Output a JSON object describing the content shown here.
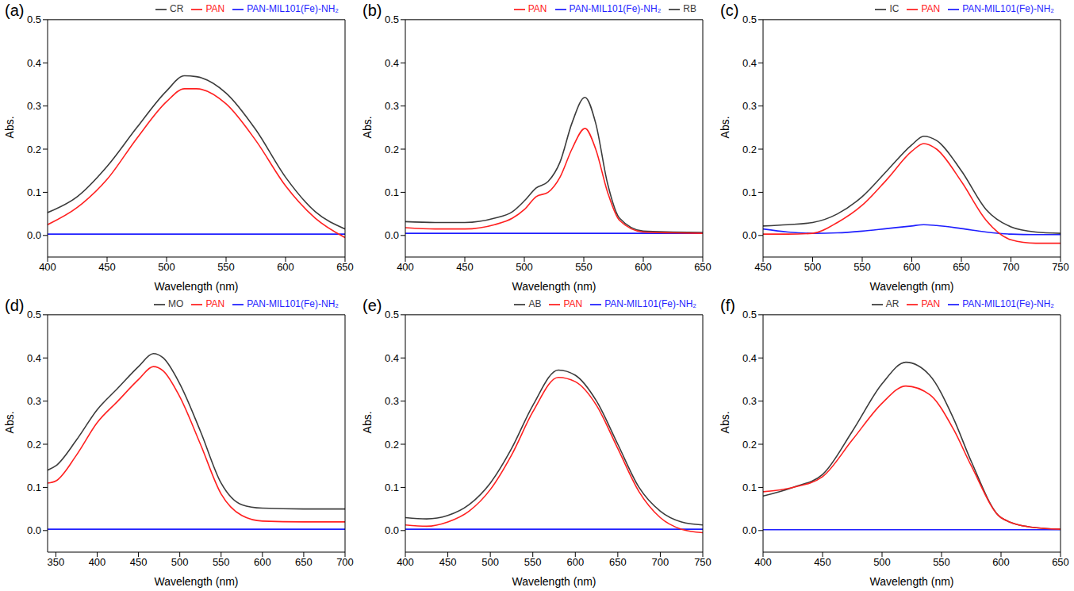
{
  "chart_data": [
    {
      "type": "line",
      "title": "(a)",
      "x_label": "Wavelength (nm)",
      "y_label": "Abs.",
      "legend": "top",
      "x": [
        400,
        425,
        450,
        475,
        500,
        515,
        525,
        550,
        575,
        600,
        625,
        650
      ],
      "series": [
        {
          "name": "CR",
          "color": "#3c3c3c",
          "values": [
            0.053,
            0.09,
            0.16,
            0.25,
            0.335,
            0.37,
            0.368,
            0.33,
            0.245,
            0.135,
            0.055,
            0.015
          ]
        },
        {
          "name": "PAN-MIL101(Fe)-NH₂",
          "color": "#1f1fff",
          "values": [
            0.003,
            0.003,
            0.003,
            0.003,
            0.003,
            0.003,
            0.003,
            0.003,
            0.003,
            0.003,
            0.003,
            0.003
          ]
        },
        {
          "name": "PAN",
          "color": "#ff2020",
          "values": [
            0.025,
            0.065,
            0.13,
            0.225,
            0.31,
            0.34,
            0.34,
            0.305,
            0.22,
            0.115,
            0.04,
            -0.005
          ]
        }
      ],
      "xlim": [
        400,
        650
      ],
      "xticks": [
        400,
        450,
        500,
        550,
        600,
        650
      ],
      "ylim": [
        -0.05,
        0.5
      ],
      "yticks": [
        {
          "value": 0,
          "label": "0.0"
        },
        0.1,
        0.2,
        0.3,
        0.4,
        0.5
      ]
    },
    {
      "type": "line",
      "title": "(b)",
      "x_label": "Wavelength (nm)",
      "y_label": "Abs.",
      "legend": "top",
      "x": [
        400,
        425,
        450,
        475,
        490,
        500,
        510,
        520,
        530,
        540,
        551,
        560,
        570,
        580,
        600,
        625,
        650
      ],
      "series": [
        {
          "name": "RB",
          "color": "#3c3c3c",
          "values": [
            0.032,
            0.03,
            0.03,
            0.04,
            0.055,
            0.08,
            0.11,
            0.125,
            0.17,
            0.26,
            0.32,
            0.26,
            0.12,
            0.04,
            0.01,
            0.008,
            0.007
          ]
        },
        {
          "name": "PAN-MIL101(Fe)-NH₂",
          "color": "#1f1fff",
          "values": [
            0.005,
            0.005,
            0.005,
            0.005,
            0.005,
            0.005,
            0.005,
            0.005,
            0.005,
            0.005,
            0.005,
            0.005,
            0.005,
            0.005,
            0.005,
            0.005,
            0.005
          ]
        },
        {
          "name": "PAN",
          "color": "#ff2020",
          "values": [
            0.018,
            0.015,
            0.015,
            0.025,
            0.04,
            0.06,
            0.09,
            0.1,
            0.135,
            0.2,
            0.248,
            0.2,
            0.1,
            0.035,
            0.008,
            0.006,
            0.005
          ]
        }
      ],
      "xlim": [
        400,
        650
      ],
      "xticks": [
        400,
        450,
        500,
        550,
        600,
        650
      ],
      "ylim": [
        -0.05,
        0.5
      ],
      "yticks": [
        {
          "value": 0,
          "label": "0.0"
        },
        0.1,
        0.2,
        0.3,
        0.4,
        0.5
      ]
    },
    {
      "type": "line",
      "title": "(c)",
      "x_label": "Wavelength (nm)",
      "y_label": "Abs.",
      "legend": "top",
      "x": [
        450,
        475,
        500,
        525,
        550,
        575,
        600,
        612,
        625,
        650,
        675,
        700,
        725,
        750
      ],
      "series": [
        {
          "name": "IC",
          "color": "#3c3c3c",
          "values": [
            0.022,
            0.025,
            0.03,
            0.05,
            0.09,
            0.15,
            0.21,
            0.23,
            0.22,
            0.15,
            0.06,
            0.02,
            0.008,
            0.005
          ]
        },
        {
          "name": "PAN-MIL101(Fe)-NH₂",
          "color": "#1f1fff",
          "values": [
            0.015,
            0.008,
            0.005,
            0.006,
            0.01,
            0.016,
            0.022,
            0.025,
            0.023,
            0.016,
            0.008,
            0.003,
            0.002,
            0.002
          ]
        },
        {
          "name": "PAN",
          "color": "#ff2020",
          "values": [
            0.003,
            0.003,
            0.005,
            0.03,
            0.07,
            0.13,
            0.195,
            0.213,
            0.2,
            0.125,
            0.035,
            -0.01,
            -0.018,
            -0.018
          ]
        }
      ],
      "xlim": [
        450,
        750
      ],
      "xticks": [
        450,
        500,
        550,
        600,
        650,
        700,
        750
      ],
      "ylim": [
        -0.05,
        0.5
      ],
      "yticks": [
        {
          "value": 0,
          "label": "0.0"
        },
        0.1,
        0.2,
        0.3,
        0.4,
        0.5
      ]
    },
    {
      "type": "line",
      "title": "(d)",
      "x_label": "Wavelength (nm)",
      "y_label": "Abs.",
      "legend": "top",
      "x": [
        340,
        350,
        375,
        400,
        425,
        450,
        468,
        480,
        500,
        525,
        550,
        575,
        600,
        650,
        700
      ],
      "series": [
        {
          "name": "MO",
          "color": "#3c3c3c",
          "values": [
            0.14,
            0.15,
            0.21,
            0.28,
            0.33,
            0.38,
            0.41,
            0.4,
            0.34,
            0.23,
            0.11,
            0.06,
            0.052,
            0.05,
            0.05
          ]
        },
        {
          "name": "PAN-MIL101(Fe)-NH₂",
          "color": "#1f1fff",
          "values": [
            0.003,
            0.003,
            0.003,
            0.003,
            0.003,
            0.003,
            0.003,
            0.003,
            0.003,
            0.003,
            0.003,
            0.003,
            0.003,
            0.003,
            0.003
          ]
        },
        {
          "name": "PAN",
          "color": "#ff2020",
          "values": [
            0.11,
            0.115,
            0.175,
            0.25,
            0.3,
            0.35,
            0.38,
            0.37,
            0.31,
            0.2,
            0.085,
            0.035,
            0.022,
            0.02,
            0.02
          ]
        }
      ],
      "xlim": [
        340,
        700
      ],
      "xticks": [
        350,
        400,
        450,
        500,
        550,
        600,
        650,
        700
      ],
      "ylim": [
        -0.05,
        0.5
      ],
      "yticks": [
        {
          "value": 0,
          "label": "0.0"
        },
        0.1,
        0.2,
        0.3,
        0.4,
        0.5
      ]
    },
    {
      "type": "line",
      "title": "(e)",
      "x_label": "Wavelength (nm)",
      "y_label": "Abs.",
      "legend": "top",
      "x": [
        400,
        425,
        450,
        475,
        500,
        525,
        550,
        580,
        600,
        625,
        650,
        675,
        700,
        725,
        750
      ],
      "series": [
        {
          "name": "AB",
          "color": "#3c3c3c",
          "values": [
            0.03,
            0.027,
            0.035,
            0.06,
            0.11,
            0.19,
            0.29,
            0.372,
            0.36,
            0.3,
            0.2,
            0.1,
            0.045,
            0.02,
            0.013
          ]
        },
        {
          "name": "PAN-MIL101(Fe)-NH₂",
          "color": "#1f1fff",
          "values": [
            0.003,
            0.003,
            0.003,
            0.003,
            0.003,
            0.003,
            0.003,
            0.003,
            0.003,
            0.003,
            0.003,
            0.003,
            0.003,
            0.003,
            0.003
          ]
        },
        {
          "name": "PAN",
          "color": "#ff2020",
          "values": [
            0.013,
            0.01,
            0.02,
            0.045,
            0.095,
            0.175,
            0.275,
            0.355,
            0.345,
            0.29,
            0.19,
            0.09,
            0.03,
            0.003,
            -0.005
          ]
        }
      ],
      "xlim": [
        400,
        750
      ],
      "xticks": [
        400,
        450,
        500,
        550,
        600,
        650,
        700,
        750
      ],
      "ylim": [
        -0.05,
        0.5
      ],
      "yticks": [
        {
          "value": 0,
          "label": "0.0"
        },
        0.1,
        0.2,
        0.3,
        0.4,
        0.5
      ]
    },
    {
      "type": "line",
      "title": "(f)",
      "x_label": "Wavelength (nm)",
      "y_label": "Abs.",
      "legend": "top",
      "x": [
        400,
        425,
        450,
        475,
        500,
        520,
        540,
        560,
        575,
        600,
        625,
        650
      ],
      "series": [
        {
          "name": "AR",
          "color": "#3c3c3c",
          "values": [
            0.08,
            0.1,
            0.13,
            0.23,
            0.34,
            0.39,
            0.36,
            0.26,
            0.16,
            0.03,
            0.008,
            0.003
          ]
        },
        {
          "name": "PAN-MIL101(Fe)-NH₂",
          "color": "#1f1fff",
          "values": [
            0.002,
            0.002,
            0.002,
            0.002,
            0.002,
            0.002,
            0.002,
            0.002,
            0.002,
            0.002,
            0.002,
            0.002
          ]
        },
        {
          "name": "PAN",
          "color": "#ff2020",
          "values": [
            0.09,
            0.1,
            0.125,
            0.21,
            0.295,
            0.335,
            0.315,
            0.235,
            0.15,
            0.03,
            0.008,
            0.003
          ]
        }
      ],
      "xlim": [
        400,
        650
      ],
      "xticks": [
        400,
        450,
        500,
        550,
        600,
        650
      ],
      "ylim": [
        -0.05,
        0.5
      ],
      "yticks": [
        {
          "value": 0,
          "label": "0.0"
        },
        0.1,
        0.2,
        0.3,
        0.4,
        0.5
      ]
    }
  ]
}
